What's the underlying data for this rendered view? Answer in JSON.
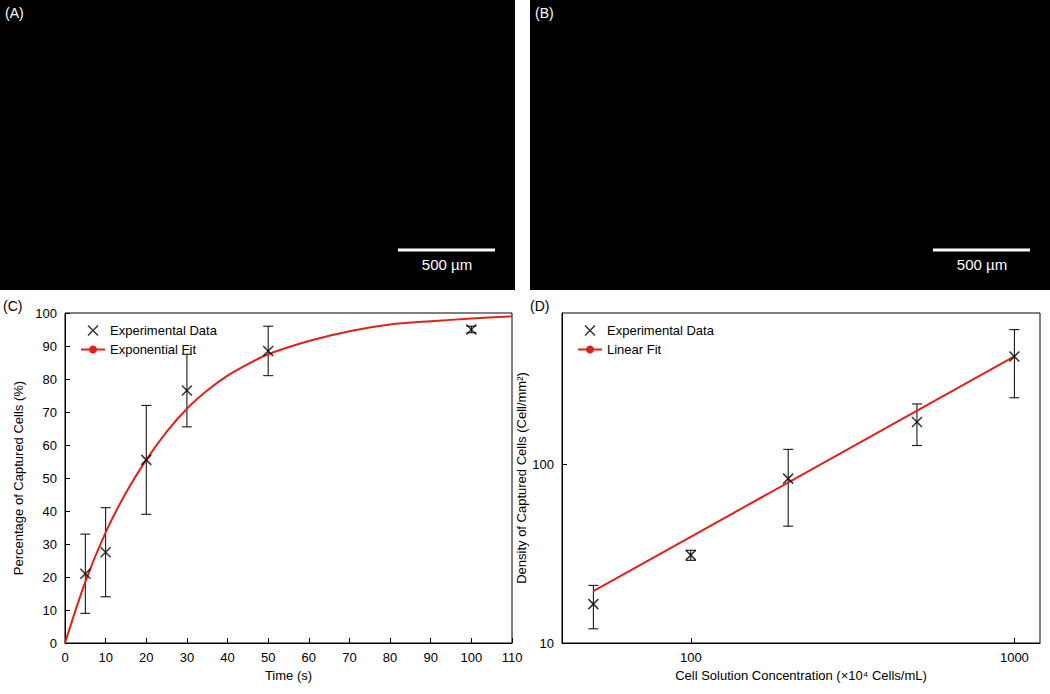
{
  "chart_data": [
    {
      "type": "image",
      "title": "(A)",
      "annotations": [
        "500 µm"
      ]
    },
    {
      "type": "image",
      "title": "(B)",
      "annotations": [
        "500 µm"
      ]
    },
    {
      "type": "scatter",
      "title": "(C)",
      "xlabel": "Time (s)",
      "ylabel": "Percentage of Captured Cells (%)",
      "xlim": [
        0,
        110
      ],
      "xticks": [
        0,
        10,
        20,
        30,
        40,
        50,
        60,
        70,
        80,
        90,
        100,
        110
      ],
      "ylim": [
        0,
        100
      ],
      "yticks": [
        0,
        10,
        20,
        30,
        40,
        50,
        60,
        70,
        80,
        90,
        100
      ],
      "grid": false,
      "legend": "upper left",
      "series": [
        {
          "name": "Experimental Data",
          "type": "scatter",
          "marker": "x",
          "color": "#000000",
          "x": [
            5,
            10,
            20,
            30,
            50,
            100
          ],
          "values": [
            21,
            27.5,
            55.5,
            76.5,
            88.5,
            95
          ],
          "errors": [
            12,
            13.5,
            16.5,
            11,
            7.5,
            1
          ]
        },
        {
          "name": "Exponential Fit",
          "type": "line",
          "line_style": "solid",
          "color": "#e0201b",
          "x": [
            0,
            5,
            10,
            15,
            20,
            25,
            30,
            35,
            40,
            45,
            50,
            60,
            70,
            80,
            90,
            100,
            110
          ],
          "values": [
            0,
            18.5,
            33.5,
            45.5,
            55.5,
            64,
            71,
            76.5,
            81,
            84.5,
            87.5,
            91.5,
            94.5,
            96.5,
            97.5,
            98.3,
            99
          ]
        }
      ]
    },
    {
      "type": "scatter",
      "title": "(D)",
      "xlabel": "Cell Solution Concentration (×10⁴ Cells/mL)",
      "ylabel": "Density of Captured Cells (Cell/mm²)",
      "log": true,
      "xlim": [
        40,
        1200
      ],
      "xticks": [
        100,
        1000
      ],
      "ylim": [
        10,
        700
      ],
      "yticks": [
        10,
        100
      ],
      "grid": false,
      "legend": "upper left",
      "series": [
        {
          "name": "Experimental Data",
          "type": "scatter",
          "marker": "x",
          "color": "#000000",
          "x": [
            50,
            100,
            200,
            500,
            1000
          ],
          "values": [
            16.5,
            31,
            83,
            172,
            400
          ],
          "errors": [
            4.5,
            2,
            38,
            45,
            165
          ]
        },
        {
          "name": "Linear Fit",
          "type": "line",
          "line_style": "solid",
          "color": "#e0201b",
          "x": [
            50,
            1000
          ],
          "values": [
            19.5,
            400
          ]
        }
      ]
    }
  ]
}
